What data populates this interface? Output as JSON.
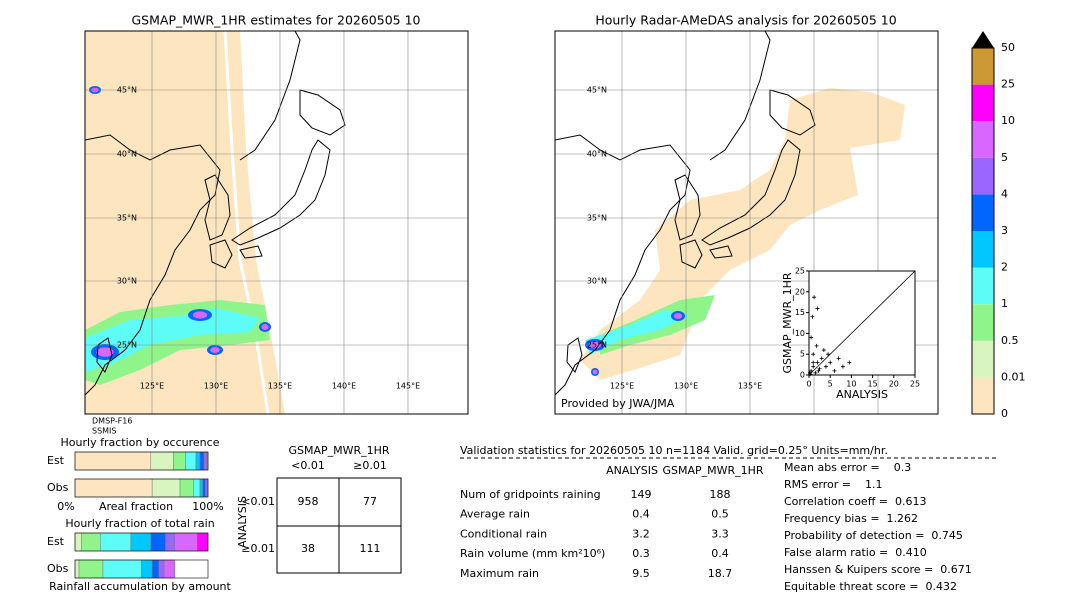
{
  "maps": [
    {
      "title": "GSMAP_MWR_1HR estimates for 20260505 10",
      "lat_labels": [
        "45°N",
        "40°N",
        "35°N",
        "30°N",
        "25°N"
      ],
      "lon_labels": [
        "125°E",
        "130°E",
        "135°E",
        "140°E",
        "145°E"
      ],
      "notes": [
        "DMSP-F16",
        "SSMIS"
      ]
    },
    {
      "title": "Hourly Radar-AMeDAS analysis for 20260505 10",
      "lat_labels": [
        "45°N",
        "40°N",
        "35°N",
        "30°N",
        "25°N"
      ],
      "lon_labels": [
        "125°E",
        "130°E",
        "135°E"
      ],
      "credit": "Provided by JWA/JMA"
    }
  ],
  "colorbar": {
    "labels": [
      "0",
      "0.01",
      "0.5",
      "1",
      "2",
      "3",
      "4",
      "5",
      "10",
      "25",
      "50"
    ],
    "colors": [
      "#fde6bf",
      "#d8f5bf",
      "#8ff58b",
      "#5dfcf6",
      "#00c8ff",
      "#0066ff",
      "#9966ff",
      "#d966ff",
      "#ff00ff",
      "#cc9933"
    ]
  },
  "scatter": {
    "ylabel": "GSMAP_MWR_1HR",
    "xlabel": "ANALYSIS",
    "ticks": [
      0,
      5,
      10,
      15,
      20,
      25
    ],
    "x": [
      0.5,
      1,
      1.5,
      2,
      2.5,
      3,
      1,
      0.3,
      4,
      5,
      6,
      7,
      8,
      2,
      1.2,
      0.8,
      3.5,
      1.8,
      9.5,
      0.5,
      0.2,
      2.2,
      1,
      4.5
    ],
    "y": [
      1,
      2,
      0.5,
      3,
      1.5,
      4,
      5,
      0.2,
      2,
      3,
      1,
      4,
      2,
      16,
      18.7,
      14,
      6,
      7,
      3,
      9,
      0.5,
      1,
      3,
      5
    ]
  },
  "occurrence": {
    "title": "Hourly fraction by occurence",
    "rows": [
      "Est",
      "Obs"
    ],
    "segments": [
      [
        57,
        17,
        9,
        8,
        3,
        3,
        2,
        1
      ],
      [
        58,
        21,
        10,
        5,
        2,
        2,
        2
      ]
    ],
    "colors": [
      [
        "#fde6bf",
        "#d8f5bf",
        "#8ff58b",
        "#5dfcf6",
        "#00c8ff",
        "#0066ff",
        "#9966ff",
        "#d966ff"
      ],
      [
        "#fde6bf",
        "#d8f5bf",
        "#8ff58b",
        "#5dfcf6",
        "#00c8ff",
        "#0066ff",
        "#9966ff"
      ]
    ],
    "axis_labels": [
      "0%",
      "Areal fraction",
      "100%"
    ]
  },
  "total_rain": {
    "title": "Hourly fraction of total rain",
    "rows": [
      "Est",
      "Obs"
    ],
    "segments": [
      [
        5,
        14,
        23,
        15,
        11,
        7,
        17,
        8
      ],
      [
        3,
        18,
        29,
        8,
        5,
        4,
        8
      ]
    ],
    "colors": [
      [
        "#d8f5bf",
        "#8ff58b",
        "#5dfcf6",
        "#00c8ff",
        "#0066ff",
        "#9966ff",
        "#d966ff",
        "#ff00ff"
      ],
      [
        "#d8f5bf",
        "#8ff58b",
        "#5dfcf6",
        "#00c8ff",
        "#0066ff",
        "#9966ff",
        "#d966ff"
      ]
    ],
    "footer": "Rainfall accumulation by amount"
  },
  "contingency": {
    "title": "GSMAP_MWR_1HR",
    "columns": [
      "<0.01",
      "≥0.01"
    ],
    "side_label": "ANALYSIS",
    "rows": [
      "<0.01",
      "≥0.01"
    ],
    "cells": [
      [
        "958",
        "77"
      ],
      [
        "38",
        "111"
      ]
    ]
  },
  "validation": {
    "header": "Validation statistics for 20260505 10  n=1184 Valid. grid=0.25° Units=mm/hr.",
    "columns": [
      "ANALYSIS",
      "GSMAP_MWR_1HR"
    ],
    "rows": [
      [
        "Num of gridpoints raining",
        "149",
        "188"
      ],
      [
        "Average rain",
        "0.4",
        "0.5"
      ],
      [
        "Conditional rain",
        "3.2",
        "3.3"
      ],
      [
        "Rain volume (mm km²10⁶)",
        "0.3",
        "0.4"
      ],
      [
        "Maximum rain",
        "9.5",
        "18.7"
      ]
    ],
    "scores": [
      "Mean abs error =    0.3",
      "RMS error =    1.1",
      "Correlation coeff =  0.613",
      "Frequency bias =  1.262",
      "Probability of detection =  0.745",
      "False alarm ratio =  0.410",
      "Hanssen & Kuipers score =  0.671",
      "Equitable threat score =  0.432"
    ]
  }
}
